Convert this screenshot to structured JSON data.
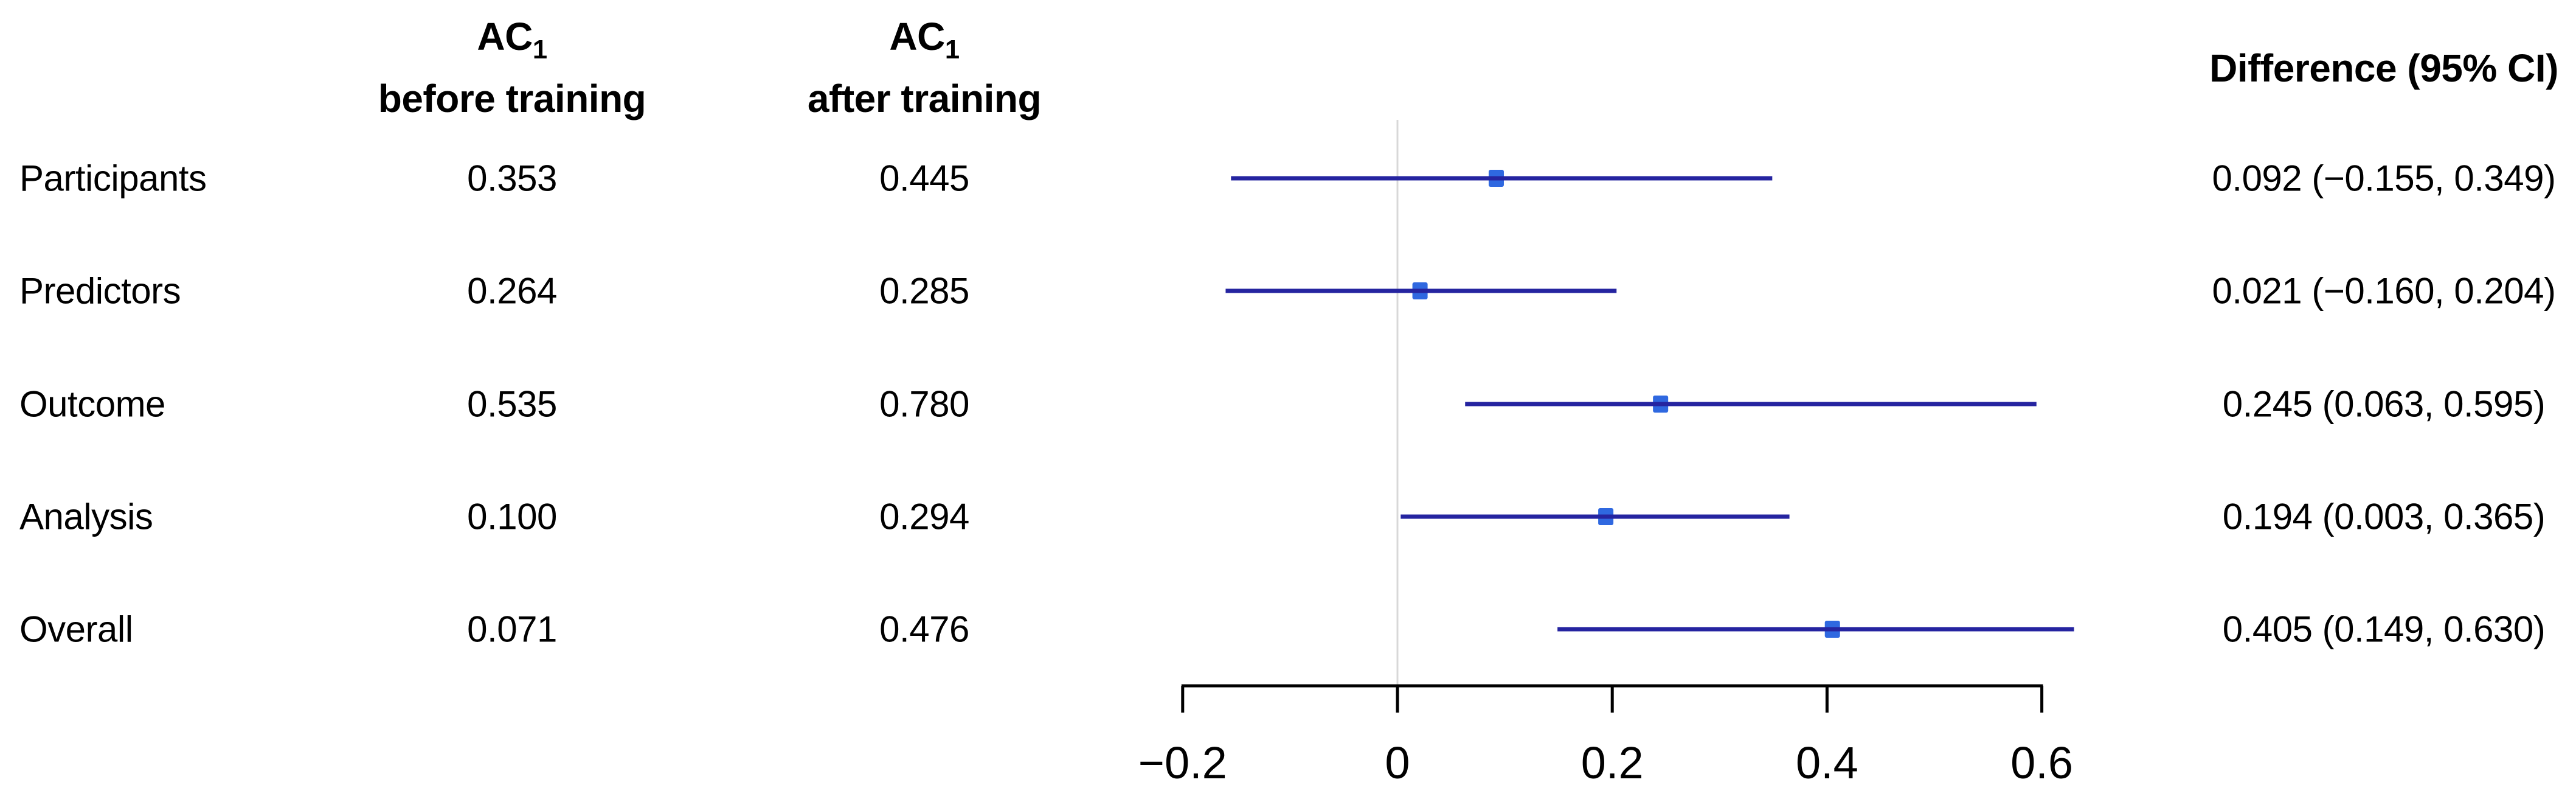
{
  "figure": {
    "headers": {
      "before_line1_main": "AC",
      "before_line1_sub": "1",
      "before_line2": "before training",
      "after_line1_main": "AC",
      "after_line1_sub": "1",
      "after_line2": "after training",
      "difference": "Difference (95% CI)"
    },
    "rows": [
      {
        "label": "Participants",
        "before": "0.353",
        "after": "0.445",
        "difference": "0.092 (−0.155, 0.349)"
      },
      {
        "label": "Predictors",
        "before": "0.264",
        "after": "0.285",
        "difference": "0.021 (−0.160, 0.204)"
      },
      {
        "label": "Outcome",
        "before": "0.535",
        "after": "0.780",
        "difference": "0.245 (0.063, 0.595)"
      },
      {
        "label": "Analysis",
        "before": "0.100",
        "after": "0.294",
        "difference": "0.194 (0.003, 0.365)"
      },
      {
        "label": "Overall",
        "before": "0.071",
        "after": "0.476",
        "difference": "0.405 (0.149, 0.630)"
      }
    ]
  },
  "chart_data": {
    "type": "scatter",
    "subtype": "forest-plot",
    "title": "",
    "xlabel": "",
    "ylabel": "",
    "categories": [
      "Participants",
      "Predictors",
      "Outcome",
      "Analysis",
      "Overall"
    ],
    "ac1_before": [
      0.353,
      0.264,
      0.535,
      0.1,
      0.071
    ],
    "ac1_after": [
      0.445,
      0.285,
      0.78,
      0.294,
      0.476
    ],
    "difference": [
      0.092,
      0.021,
      0.245,
      0.194,
      0.405
    ],
    "ci_low": [
      -0.155,
      -0.16,
      0.063,
      0.003,
      0.149
    ],
    "ci_high": [
      0.349,
      0.204,
      0.595,
      0.365,
      0.63
    ],
    "ci_level": "95%",
    "xlim": [
      -0.2,
      0.6
    ],
    "x_ticks": [
      -0.2,
      0,
      0.2,
      0.4,
      0.6
    ],
    "x_tick_labels": [
      "−0.2",
      "0",
      "0.2",
      "0.4",
      "0.6"
    ],
    "reference_line_x": 0,
    "grid": false,
    "legend": false,
    "colors": {
      "ci_line": "#2524a0",
      "marker": "#2f68e0",
      "reference_line": "#d8d8d8",
      "axis": "#000000",
      "text": "#000000"
    }
  }
}
